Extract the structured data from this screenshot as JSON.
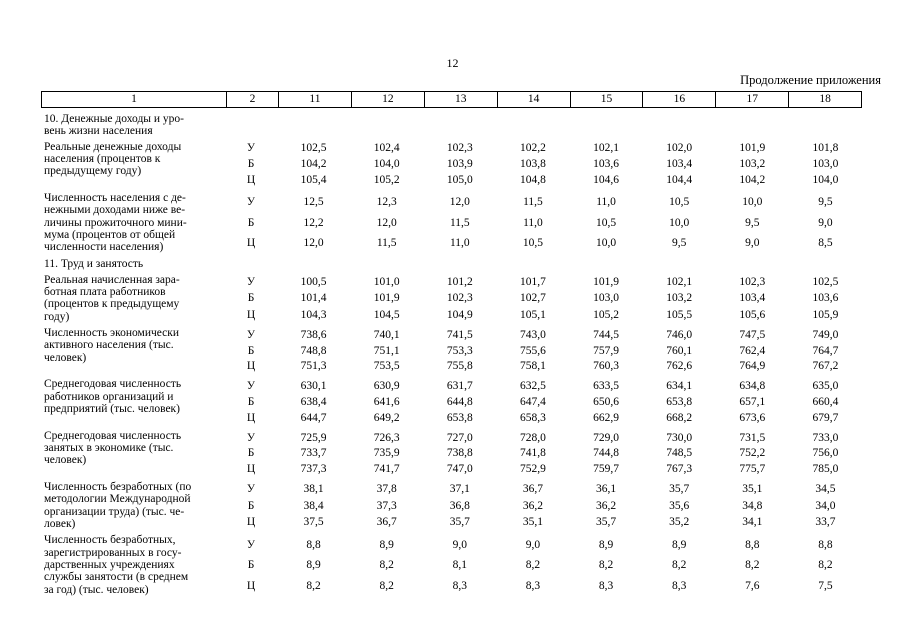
{
  "page": {
    "number": "12",
    "continuation_note": "Продолжение приложения"
  },
  "table": {
    "columns": [
      "1",
      "2",
      "11",
      "12",
      "13",
      "14",
      "15",
      "16",
      "17",
      "18"
    ],
    "sections": [
      {
        "title": "10. Денежные доходы и уро-\nвень жизни населения",
        "groups": [
          {
            "label": "Реальные денежные доходы\nнаселения (процентов к\nпредыдущему году)",
            "rows": [
              {
                "code": "У",
                "values": [
                  "102,5",
                  "102,4",
                  "102,3",
                  "102,2",
                  "102,1",
                  "102,0",
                  "101,9",
                  "101,8"
                ]
              },
              {
                "code": "Б",
                "values": [
                  "104,2",
                  "104,0",
                  "103,9",
                  "103,8",
                  "103,6",
                  "103,4",
                  "103,2",
                  "103,0"
                ]
              },
              {
                "code": "Ц",
                "values": [
                  "105,4",
                  "105,2",
                  "105,0",
                  "104,8",
                  "104,6",
                  "104,4",
                  "104,2",
                  "104,0"
                ]
              }
            ]
          },
          {
            "label": "Численность населения с де-\nнежными доходами ниже ве-\nличины прожиточного мини-\nмума (процентов от общей\nчисленности населения)",
            "rows": [
              {
                "code": "У",
                "values": [
                  "12,5",
                  "12,3",
                  "12,0",
                  "11,5",
                  "11,0",
                  "10,5",
                  "10,0",
                  "9,5"
                ]
              },
              {
                "code": "Б",
                "values": [
                  "12,2",
                  "12,0",
                  "11,5",
                  "11,0",
                  "10,5",
                  "10,0",
                  "9,5",
                  "9,0"
                ]
              },
              {
                "code": "Ц",
                "values": [
                  "12,0",
                  "11,5",
                  "11,0",
                  "10,5",
                  "10,0",
                  "9,5",
                  "9,0",
                  "8,5"
                ]
              }
            ]
          }
        ]
      },
      {
        "title": "11. Труд и занятость",
        "groups": [
          {
            "label": "Реальная начисленная зара-\nботная плата работников\n(процентов к предыдущему\nгоду)",
            "rows": [
              {
                "code": "У",
                "values": [
                  "100,5",
                  "101,0",
                  "101,2",
                  "101,7",
                  "101,9",
                  "102,1",
                  "102,3",
                  "102,5"
                ]
              },
              {
                "code": "Б",
                "values": [
                  "101,4",
                  "101,9",
                  "102,3",
                  "102,7",
                  "103,0",
                  "103,2",
                  "103,4",
                  "103,6"
                ]
              },
              {
                "code": "Ц",
                "values": [
                  "104,3",
                  "104,5",
                  "104,9",
                  "105,1",
                  "105,2",
                  "105,5",
                  "105,6",
                  "105,9"
                ]
              }
            ]
          },
          {
            "label": "Численность экономически\nактивного населения (тыс.\nчеловек)",
            "rows": [
              {
                "code": "У",
                "values": [
                  "738,6",
                  "740,1",
                  "741,5",
                  "743,0",
                  "744,5",
                  "746,0",
                  "747,5",
                  "749,0"
                ]
              },
              {
                "code": "Б",
                "values": [
                  "748,8",
                  "751,1",
                  "753,3",
                  "755,6",
                  "757,9",
                  "760,1",
                  "762,4",
                  "764,7"
                ]
              },
              {
                "code": "Ц",
                "values": [
                  "751,3",
                  "753,5",
                  "755,8",
                  "758,1",
                  "760,3",
                  "762,6",
                  "764,9",
                  "767,2"
                ]
              }
            ]
          },
          {
            "label": "Среднегодовая численность\nработников организаций и\nпредприятий (тыс. человек)",
            "rows": [
              {
                "code": "У",
                "values": [
                  "630,1",
                  "630,9",
                  "631,7",
                  "632,5",
                  "633,5",
                  "634,1",
                  "634,8",
                  "635,0"
                ]
              },
              {
                "code": "Б",
                "values": [
                  "638,4",
                  "641,6",
                  "644,8",
                  "647,4",
                  "650,6",
                  "653,8",
                  "657,1",
                  "660,4"
                ]
              },
              {
                "code": "Ц",
                "values": [
                  "644,7",
                  "649,2",
                  "653,8",
                  "658,3",
                  "662,9",
                  "668,2",
                  "673,6",
                  "679,7"
                ]
              }
            ]
          },
          {
            "label": "Среднегодовая численность\nзанятых в экономике (тыс.\nчеловек)",
            "rows": [
              {
                "code": "У",
                "values": [
                  "725,9",
                  "726,3",
                  "727,0",
                  "728,0",
                  "729,0",
                  "730,0",
                  "731,5",
                  "733,0"
                ]
              },
              {
                "code": "Б",
                "values": [
                  "733,7",
                  "735,9",
                  "738,8",
                  "741,8",
                  "744,8",
                  "748,5",
                  "752,2",
                  "756,0"
                ]
              },
              {
                "code": "Ц",
                "values": [
                  "737,3",
                  "741,7",
                  "747,0",
                  "752,9",
                  "759,7",
                  "767,3",
                  "775,7",
                  "785,0"
                ]
              }
            ]
          },
          {
            "label": "Численность безработных (по\nметодологии Международной\nорганизации труда) (тыс. че-\nловек)",
            "rows": [
              {
                "code": "У",
                "values": [
                  "38,1",
                  "37,8",
                  "37,1",
                  "36,7",
                  "36,1",
                  "35,7",
                  "35,1",
                  "34,5"
                ]
              },
              {
                "code": "Б",
                "values": [
                  "38,4",
                  "37,3",
                  "36,8",
                  "36,2",
                  "36,2",
                  "35,6",
                  "34,8",
                  "34,0"
                ]
              },
              {
                "code": "Ц",
                "values": [
                  "37,5",
                  "36,7",
                  "35,7",
                  "35,1",
                  "35,7",
                  "35,2",
                  "34,1",
                  "33,7"
                ]
              }
            ]
          },
          {
            "label": "Численность безработных,\nзарегистрированных в госу-\nдарственных учреждениях\nслужбы занятости (в среднем\nза год) (тыс. человек)",
            "rows": [
              {
                "code": "У",
                "values": [
                  "8,8",
                  "8,9",
                  "9,0",
                  "9,0",
                  "8,9",
                  "8,9",
                  "8,8",
                  "8,8"
                ]
              },
              {
                "code": "Б",
                "values": [
                  "8,9",
                  "8,2",
                  "8,1",
                  "8,2",
                  "8,2",
                  "8,2",
                  "8,2",
                  "8,2"
                ]
              },
              {
                "code": "Ц",
                "values": [
                  "8,2",
                  "8,2",
                  "8,3",
                  "8,3",
                  "8,3",
                  "8,3",
                  "7,6",
                  "7,5"
                ]
              }
            ]
          }
        ]
      }
    ]
  }
}
